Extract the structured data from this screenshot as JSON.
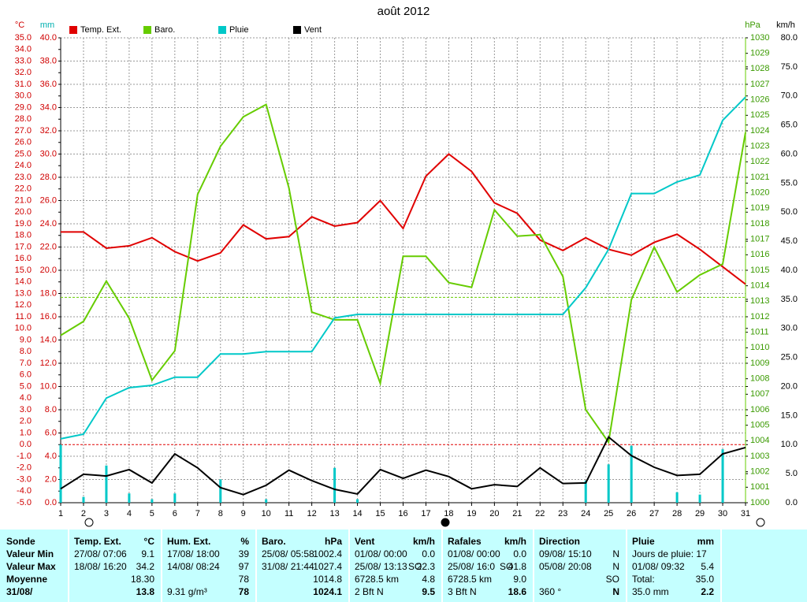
{
  "chart_data": {
    "type": "line",
    "title": "août 2012",
    "x": [
      1,
      2,
      3,
      4,
      5,
      6,
      7,
      8,
      9,
      10,
      11,
      12,
      13,
      14,
      15,
      16,
      17,
      18,
      19,
      20,
      21,
      22,
      23,
      24,
      25,
      26,
      27,
      28,
      29,
      30,
      31
    ],
    "xlim": [
      1,
      31
    ],
    "xticks": [
      1,
      2,
      3,
      4,
      5,
      6,
      7,
      8,
      9,
      10,
      11,
      12,
      13,
      14,
      15,
      16,
      17,
      18,
      19,
      20,
      21,
      22,
      23,
      24,
      25,
      26,
      27,
      28,
      29,
      30,
      31
    ],
    "ylabel": "°C",
    "ylim": [
      -5,
      35
    ],
    "yticks": [
      {
        "value": -5,
        "label": "-5.0"
      },
      {
        "value": -4,
        "label": "-4.0"
      },
      {
        "value": -3,
        "label": "-3.0"
      },
      {
        "value": -2,
        "label": "-2.0"
      },
      {
        "value": -1,
        "label": "-1.0"
      },
      {
        "value": 0,
        "label": "0.0"
      },
      {
        "value": 1,
        "label": "1.0"
      },
      {
        "value": 2,
        "label": "2.0"
      },
      {
        "value": 3,
        "label": "3.0"
      },
      {
        "value": 4,
        "label": "4.0"
      },
      {
        "value": 5,
        "label": "5.0"
      },
      {
        "value": 6,
        "label": "6.0"
      },
      {
        "value": 7,
        "label": "7.0"
      },
      {
        "value": 8,
        "label": "8.0"
      },
      {
        "value": 9,
        "label": "9.0"
      },
      {
        "value": 10,
        "label": "10.0"
      },
      {
        "value": 11,
        "label": "11.0"
      },
      {
        "value": 12,
        "label": "12.0"
      },
      {
        "value": 13,
        "label": "13.0"
      },
      {
        "value": 14,
        "label": "14.0"
      },
      {
        "value": 15,
        "label": "15.0"
      },
      {
        "value": 16,
        "label": "16.0"
      },
      {
        "value": 17,
        "label": "17.0"
      },
      {
        "value": 18,
        "label": "18.0"
      },
      {
        "value": 19,
        "label": "19.0"
      },
      {
        "value": 20,
        "label": "20.0"
      },
      {
        "value": 21,
        "label": "21.0"
      },
      {
        "value": 22,
        "label": "22.0"
      },
      {
        "value": 23,
        "label": "23.0"
      },
      {
        "value": 24,
        "label": "24.0"
      },
      {
        "value": 25,
        "label": "25.0"
      },
      {
        "value": 26,
        "label": "26.0"
      },
      {
        "value": 27,
        "label": "27.0"
      },
      {
        "value": 28,
        "label": "28.0"
      },
      {
        "value": 29,
        "label": "29.0"
      },
      {
        "value": 30,
        "label": "30.0"
      },
      {
        "value": 31,
        "label": "31.0"
      },
      {
        "value": 32,
        "label": "32.0"
      },
      {
        "value": 33,
        "label": "33.0"
      },
      {
        "value": 34,
        "label": "34.0"
      },
      {
        "value": 35,
        "label": "35.0"
      }
    ],
    "y2label": "mm",
    "y2lim": [
      0,
      40
    ],
    "y2ticks": [
      {
        "value": 0,
        "label": "0.0"
      },
      {
        "value": 2,
        "label": "2.0"
      },
      {
        "value": 4,
        "label": "4.0"
      },
      {
        "value": 6,
        "label": "6.0"
      },
      {
        "value": 8,
        "label": "8.0"
      },
      {
        "value": 10,
        "label": "10.0"
      },
      {
        "value": 12,
        "label": "12.0"
      },
      {
        "value": 14,
        "label": "14.0"
      },
      {
        "value": 16,
        "label": "16.0"
      },
      {
        "value": 18,
        "label": "18.0"
      },
      {
        "value": 20,
        "label": "20.0"
      },
      {
        "value": 22,
        "label": "22.0"
      },
      {
        "value": 24,
        "label": "24.0"
      },
      {
        "value": 26,
        "label": "26.0"
      },
      {
        "value": 28,
        "label": "28.0"
      },
      {
        "value": 30,
        "label": "30.0"
      },
      {
        "value": 32,
        "label": "32.0"
      },
      {
        "value": 34,
        "label": "34.0"
      },
      {
        "value": 36,
        "label": "36.0"
      },
      {
        "value": 38,
        "label": "38.0"
      },
      {
        "value": 40,
        "label": "40.0"
      }
    ],
    "y3label": "hPa",
    "y3lim": [
      1000,
      1030
    ],
    "y3ticks": [
      1000,
      1001,
      1002,
      1003,
      1004,
      1005,
      1006,
      1007,
      1008,
      1009,
      1010,
      1011,
      1012,
      1013,
      1014,
      1015,
      1016,
      1017,
      1018,
      1019,
      1020,
      1021,
      1022,
      1023,
      1024,
      1025,
      1026,
      1027,
      1028,
      1029,
      1030
    ],
    "y4label": "km/h",
    "y4lim": [
      0,
      80
    ],
    "y4ticks": [
      {
        "value": 0,
        "label": "0.0"
      },
      {
        "value": 5,
        "label": "5.0"
      },
      {
        "value": 10,
        "label": "10.0"
      },
      {
        "value": 15,
        "label": "15.0"
      },
      {
        "value": 20,
        "label": "20.0"
      },
      {
        "value": 25,
        "label": "25.0"
      },
      {
        "value": 30,
        "label": "30.0"
      },
      {
        "value": 35,
        "label": "35.0"
      },
      {
        "value": 40,
        "label": "40.0"
      },
      {
        "value": 45,
        "label": "45.0"
      },
      {
        "value": 50,
        "label": "50.0"
      },
      {
        "value": 55,
        "label": "55.0"
      },
      {
        "value": 60,
        "label": "60.0"
      },
      {
        "value": 65,
        "label": "65.0"
      },
      {
        "value": 70,
        "label": "70.0"
      },
      {
        "value": 75,
        "label": "75.0"
      },
      {
        "value": 80,
        "label": "80.0"
      }
    ],
    "grid": true,
    "reference_lines": [
      {
        "axis": "y",
        "value": 0,
        "color": "#e00000"
      },
      {
        "axis": "y3",
        "value": 1013.25,
        "color": "#66cc00"
      }
    ],
    "series": [
      {
        "name": "Temp. Ext.",
        "color": "#e00000",
        "axis": "y",
        "values": [
          18.3,
          18.3,
          16.9,
          17.1,
          17.8,
          16.6,
          15.8,
          16.5,
          18.9,
          17.7,
          17.9,
          19.6,
          18.8,
          19.1,
          21.0,
          18.6,
          23.1,
          25.0,
          23.5,
          20.8,
          19.9,
          17.6,
          16.7,
          17.8,
          16.8,
          16.3,
          17.4,
          18.1,
          16.8,
          15.3,
          13.8
        ]
      },
      {
        "name": "Baro.",
        "color": "#66cc00",
        "axis": "y3",
        "values": [
          1010.8,
          1011.7,
          1014.3,
          1011.9,
          1007.9,
          1009.8,
          1019.9,
          1023.0,
          1024.9,
          1025.7,
          1020.3,
          1012.3,
          1011.8,
          1011.8,
          1007.7,
          1015.9,
          1015.9,
          1014.2,
          1013.9,
          1018.9,
          1017.2,
          1017.3,
          1014.6,
          1006.0,
          1003.9,
          1013.1,
          1016.5,
          1013.6,
          1014.7,
          1015.4,
          1023.9
        ]
      },
      {
        "name": "Pluie",
        "color": "#00c8c8",
        "axis": "y2",
        "values": [
          5.5,
          5.9,
          9.0,
          9.9,
          10.1,
          10.8,
          10.8,
          12.8,
          12.8,
          13.0,
          13.0,
          13.0,
          15.9,
          16.2,
          16.2,
          16.2,
          16.2,
          16.2,
          16.2,
          16.2,
          16.2,
          16.2,
          16.2,
          18.5,
          21.8,
          26.6,
          26.6,
          27.6,
          28.2,
          32.9,
          34.9
        ],
        "daily": [
          5.0,
          0.5,
          3.2,
          0.8,
          0.3,
          0.8,
          0,
          2.0,
          0,
          0.3,
          0,
          0,
          3.0,
          0.3,
          0,
          0,
          0,
          0,
          0,
          0,
          0,
          0,
          0,
          1.9,
          3.3,
          4.9,
          0,
          0.9,
          0.7,
          4.6,
          0
        ]
      },
      {
        "name": "Vent",
        "color": "#000000",
        "axis": "y4",
        "values": [
          2.4,
          4.9,
          4.6,
          5.7,
          3.4,
          8.4,
          6.0,
          2.6,
          1.4,
          3.0,
          5.6,
          3.8,
          2.3,
          1.5,
          5.7,
          4.2,
          5.6,
          4.5,
          2.4,
          3.1,
          2.8,
          6.0,
          3.3,
          3.4,
          11.3,
          8.1,
          6.1,
          4.7,
          4.9,
          8.4,
          9.5
        ]
      }
    ]
  },
  "stats": {
    "row_labels": [
      "Sonde",
      "Valeur Min",
      "Valeur Max",
      "Moyenne",
      "31/08/"
    ],
    "columns": [
      {
        "title": "Temp. Ext.",
        "unit": "°C",
        "rows": [
          {
            "left": "27/08/ 07:06",
            "right": "9.1"
          },
          {
            "left": "18/08/ 16:20",
            "right": "34.2"
          },
          {
            "right": "18.30"
          },
          {
            "right": "13.8"
          }
        ]
      },
      {
        "title": "Hum. Ext.",
        "unit": "%",
        "rows": [
          {
            "left": "17/08/ 18:00",
            "right": "39"
          },
          {
            "left": "14/08/ 08:24",
            "right": "97"
          },
          {
            "right": "78"
          },
          {
            "left": "9.31 g/m³",
            "right": "78"
          }
        ]
      },
      {
        "title": "Baro.",
        "unit": "hPa",
        "rows": [
          {
            "left": "25/08/ 05:58",
            "right": "1002.4"
          },
          {
            "left": "31/08/ 21:44",
            "right": "1027.4"
          },
          {
            "right": "1014.8"
          },
          {
            "right": "1024.1"
          }
        ]
      },
      {
        "title": "Vent",
        "unit": "km/h",
        "rows": [
          {
            "left": "01/08/ 00:00",
            "right": "0.0"
          },
          {
            "left": "25/08/ 13:13",
            "mid": "SO",
            "right": "22.3"
          },
          {
            "left": "6728.5 km",
            "right": "4.8"
          },
          {
            "left": "2 Bft N",
            "right": "9.5"
          }
        ]
      },
      {
        "title": "Rafales",
        "unit": "km/h",
        "rows": [
          {
            "left": "01/08/ 00:00",
            "right": "0.0"
          },
          {
            "left": "25/08/ 16:0",
            "mid": "SO",
            "right": "41.8"
          },
          {
            "left": "6728.5 km",
            "right": "9.0"
          },
          {
            "left": "3 Bft N",
            "right": "18.6"
          }
        ]
      },
      {
        "title": "Direction",
        "rows": [
          {
            "left": "09/08/ 15:10",
            "right": "N"
          },
          {
            "left": "05/08/ 20:08",
            "right": "N"
          },
          {
            "right": "SO"
          },
          {
            "left": "360 °",
            "right": "N"
          }
        ]
      },
      {
        "title": "Pluie",
        "unit": "mm",
        "rows": [
          {
            "left": "Jours de pluie: 17"
          },
          {
            "left": "01/08/ 09:32",
            "right": "5.4"
          },
          {
            "left": "Total:",
            "right": "35.0"
          },
          {
            "left": "35.0 mm",
            "right": "2.2"
          }
        ]
      }
    ]
  }
}
